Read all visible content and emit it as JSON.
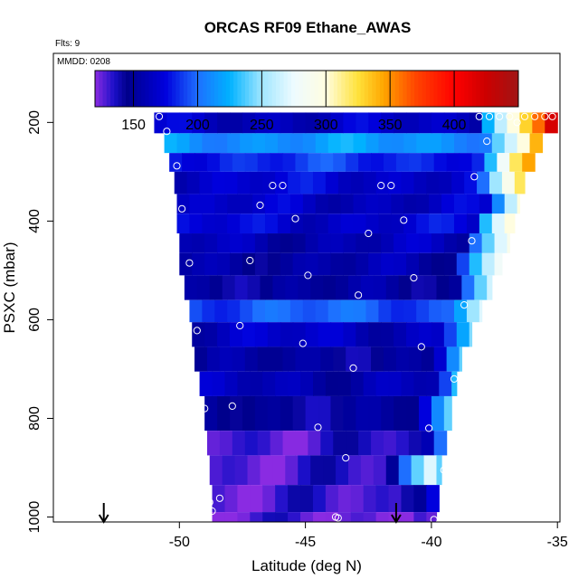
{
  "chart_data": {
    "type": "heatmap",
    "title": "ORCAS RF09 Ethane_AWAS",
    "flights_label": "Flts: 9",
    "date_label": "MMDD: 0208",
    "xlabel": "Latitude (deg N)",
    "ylabel": "PSXC (mbar)",
    "xlim": [
      -55,
      -34.9
    ],
    "ylim": [
      1010,
      60
    ],
    "xticks": [
      -50,
      -45,
      -40,
      -35
    ],
    "yticks": [
      200,
      400,
      600,
      800,
      1000
    ],
    "colorbar": {
      "range": [
        120,
        450
      ],
      "ticks": [
        150,
        200,
        250,
        300,
        350,
        400
      ],
      "stops": [
        {
          "v": 120,
          "c": "#8a2be2"
        },
        {
          "v": 135,
          "c": "#1a0fc8"
        },
        {
          "v": 145,
          "c": "#00008b"
        },
        {
          "v": 175,
          "c": "#0000dd"
        },
        {
          "v": 200,
          "c": "#1e6fff"
        },
        {
          "v": 225,
          "c": "#00b2ff"
        },
        {
          "v": 250,
          "c": "#a0e6ff"
        },
        {
          "v": 275,
          "c": "#eefbff"
        },
        {
          "v": 300,
          "c": "#fffde0"
        },
        {
          "v": 325,
          "c": "#ffe23a"
        },
        {
          "v": 345,
          "c": "#ffa500"
        },
        {
          "v": 370,
          "c": "#ff4500"
        },
        {
          "v": 400,
          "c": "#ff0000"
        },
        {
          "v": 425,
          "c": "#cc0000"
        },
        {
          "v": 450,
          "c": "#a01515"
        }
      ]
    },
    "bands": [
      {
        "p0": 180,
        "p1": 222,
        "lat0": -51,
        "lat1": -35,
        "base": 165,
        "edge": [
          225,
          260,
          300,
          330,
          360,
          420
        ]
      },
      {
        "p0": 222,
        "p1": 262,
        "lat0": -50.6,
        "lat1": -35.6,
        "base": 215,
        "edge": [
          240,
          265,
          300,
          340
        ]
      },
      {
        "p0": 262,
        "p1": 300,
        "lat0": -50.4,
        "lat1": -35.9,
        "base": 185,
        "edge": [
          230,
          280,
          320,
          345
        ]
      },
      {
        "p0": 300,
        "p1": 345,
        "lat0": -50.2,
        "lat1": -36.3,
        "base": 170,
        "edge": [
          200,
          250,
          290,
          320
        ]
      },
      {
        "p0": 345,
        "p1": 385,
        "lat0": -50.1,
        "lat1": -36.5,
        "base": 165,
        "edge": [
          210,
          260,
          300
        ]
      },
      {
        "p0": 385,
        "p1": 425,
        "lat0": -50.1,
        "lat1": -36.7,
        "base": 170,
        "edge": [
          230,
          270,
          300
        ]
      },
      {
        "p0": 425,
        "p1": 465,
        "lat0": -50.0,
        "lat1": -36.9,
        "base": 160,
        "edge": [
          200,
          240,
          270,
          290
        ]
      },
      {
        "p0": 465,
        "p1": 510,
        "lat0": -50.0,
        "lat1": -37.2,
        "base": 155,
        "edge": [
          190,
          230,
          260,
          280
        ]
      },
      {
        "p0": 510,
        "p1": 560,
        "lat0": -49.8,
        "lat1": -37.6,
        "base": 150,
        "edge": [
          200,
          240,
          265
        ]
      },
      {
        "p0": 560,
        "p1": 605,
        "lat0": -49.6,
        "lat1": -38.0,
        "base": 195,
        "edge": [
          220,
          250,
          270
        ]
      },
      {
        "p0": 605,
        "p1": 655,
        "lat0": -49.5,
        "lat1": -38.4,
        "base": 165,
        "edge": [
          190,
          220,
          245
        ]
      },
      {
        "p0": 655,
        "p1": 705,
        "lat0": -49.4,
        "lat1": -38.8,
        "base": 150,
        "edge": [
          170,
          210,
          240
        ]
      },
      {
        "p0": 705,
        "p1": 755,
        "lat0": -49.2,
        "lat1": -39.0,
        "base": 160,
        "edge": [
          190,
          230
        ]
      },
      {
        "p0": 755,
        "p1": 825,
        "lat0": -49.0,
        "lat1": -39.2,
        "base": 148,
        "edge": [
          175,
          210,
          240
        ]
      },
      {
        "p0": 825,
        "p1": 875,
        "lat0": -48.9,
        "lat1": -39.4,
        "base": 132,
        "edge": [
          160,
          200
        ]
      },
      {
        "p0": 875,
        "p1": 935,
        "lat0": -48.8,
        "lat1": -39.6,
        "base": 130,
        "edge": [
          150,
          200,
          240,
          270,
          240
        ]
      },
      {
        "p0": 935,
        "p1": 990,
        "lat0": -48.7,
        "lat1": -39.7,
        "base": 128,
        "edge": [
          140,
          150,
          175
        ]
      },
      {
        "p0": 990,
        "p1": 1018,
        "lat0": -48.7,
        "lat1": -39.8,
        "base": 125,
        "edge": [
          130,
          125
        ]
      }
    ],
    "points": [
      [
        -50.8,
        188
      ],
      [
        -50.5,
        218
      ],
      [
        -50.1,
        288
      ],
      [
        -49.9,
        375
      ],
      [
        -49.6,
        485
      ],
      [
        -49.3,
        622
      ],
      [
        -49.0,
        780
      ],
      [
        -48.8,
        970
      ],
      [
        -48.7,
        988
      ],
      [
        -48.4,
        962
      ],
      [
        -47.9,
        775
      ],
      [
        -47.6,
        612
      ],
      [
        -47.2,
        480
      ],
      [
        -46.8,
        368
      ],
      [
        -46.3,
        328
      ],
      [
        -45.9,
        328
      ],
      [
        -45.4,
        395
      ],
      [
        -45.1,
        648
      ],
      [
        -44.9,
        510
      ],
      [
        -44.5,
        818
      ],
      [
        -43.8,
        1000
      ],
      [
        -43.7,
        1002
      ],
      [
        -43.4,
        880
      ],
      [
        -43.1,
        698
      ],
      [
        -42.9,
        550
      ],
      [
        -42.5,
        425
      ],
      [
        -42.0,
        328
      ],
      [
        -41.6,
        328
      ],
      [
        -41.1,
        398
      ],
      [
        -40.7,
        515
      ],
      [
        -40.4,
        655
      ],
      [
        -40.1,
        820
      ],
      [
        -39.9,
        1005
      ],
      [
        -39.5,
        905
      ],
      [
        -39.1,
        720
      ],
      [
        -38.7,
        570
      ],
      [
        -38.4,
        440
      ],
      [
        -38.3,
        310
      ],
      [
        -37.8,
        238
      ],
      [
        -37.3,
        188
      ],
      [
        -36.9,
        188
      ],
      [
        -36.6,
        200
      ],
      [
        -35.9,
        188
      ],
      [
        -35.5,
        188
      ],
      [
        -35.2,
        188
      ],
      [
        -38.1,
        188
      ],
      [
        -37.7,
        188
      ],
      [
        -36.3,
        188
      ]
    ],
    "arrows": [
      -53.0,
      -41.4
    ]
  }
}
